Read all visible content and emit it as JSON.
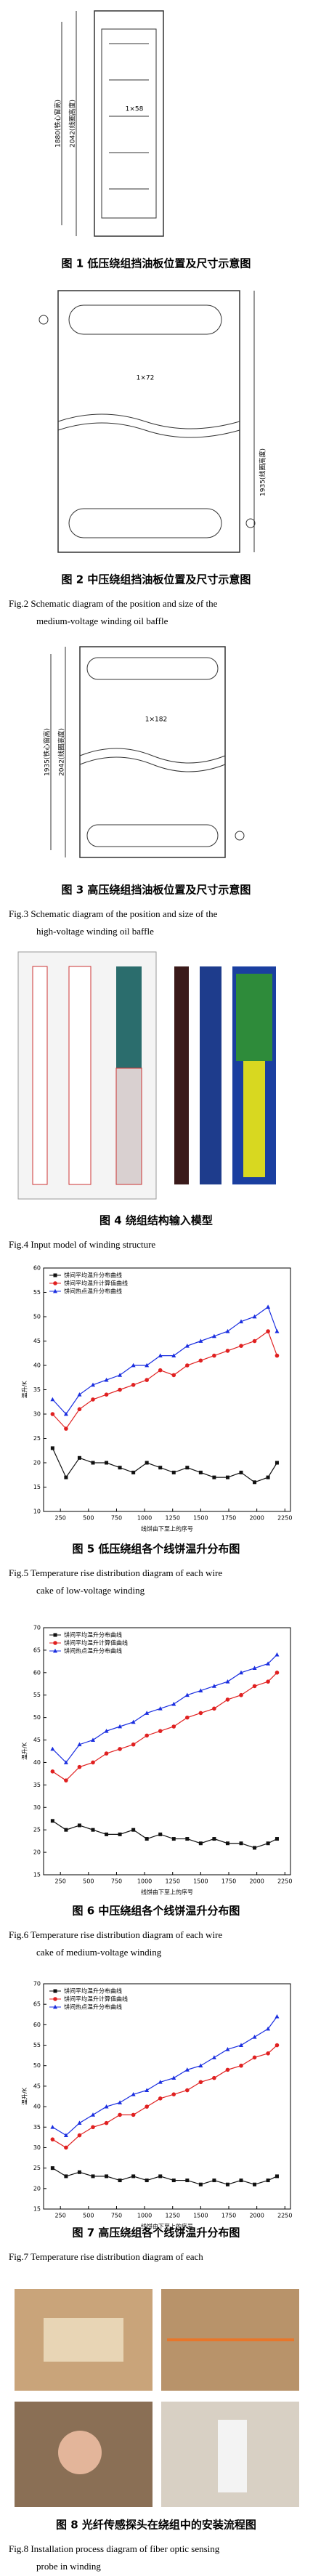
{
  "figures": [
    {
      "caption_cn": "图 1  低压绕组挡油板位置及尺寸示意图",
      "labels": [
        "1×58",
        "2042(线圈高度)",
        "1880(铁心窗高)"
      ]
    },
    {
      "caption_cn": "图 2  中压绕组挡油板位置及尺寸示意图",
      "caption_en": [
        "Fig.2  Schematic diagram of the position and size of the",
        "medium-voltage winding oil baffle"
      ],
      "labels": [
        "1×72",
        "1935(线圈高度)"
      ]
    },
    {
      "caption_cn": "图 3  高压绕组挡油板位置及尺寸示意图",
      "caption_en": [
        "Fig.3  Schematic diagram of the position and size of the",
        "high-voltage winding oil baffle"
      ],
      "labels": [
        "1×182",
        "2042(线圈高度)",
        "1935(铁心窗高)"
      ]
    },
    {
      "caption_cn": "图 4  绕组结构输入模型",
      "caption_en": [
        "Fig.4  Input model of winding structure"
      ]
    },
    {
      "caption_cn": "图 5  低压绕组各个线饼温升分布图",
      "caption_en": [
        "Fig.5  Temperature rise distribution diagram of each wire",
        "cake of low-voltage winding"
      ],
      "chart": {
        "type": "line",
        "x_label": "线饼由下至上的序号",
        "y_label": "温升/K",
        "legend": "upper left",
        "x": [
          180,
          300,
          420,
          540,
          660,
          780,
          900,
          1020,
          1140,
          1260,
          1380,
          1500,
          1620,
          1740,
          1860,
          1980,
          2100,
          2180
        ],
        "xlim": [
          100,
          2300
        ],
        "xticks": [
          250,
          500,
          750,
          1000,
          1250,
          1500,
          1750,
          2000,
          2250
        ],
        "ylim": [
          10,
          60
        ],
        "yticks": [
          10,
          15,
          20,
          25,
          30,
          35,
          40,
          45,
          50,
          55,
          60
        ],
        "series": [
          {
            "name": "饼间平均温升分布曲线",
            "color": "#111111",
            "marker": "square",
            "values": [
              23,
              17,
              21,
              20,
              20,
              19,
              18,
              20,
              19,
              18,
              19,
              18,
              17,
              17,
              18,
              16,
              17,
              20
            ]
          },
          {
            "name": "饼间平均温升计算值曲线",
            "color": "#e02020",
            "marker": "circle",
            "values": [
              30,
              27,
              31,
              33,
              34,
              35,
              36,
              37,
              39,
              38,
              40,
              41,
              42,
              43,
              44,
              45,
              47,
              42
            ]
          },
          {
            "name": "饼间热点温升分布曲线",
            "color": "#1a2ee0",
            "marker": "triangle",
            "values": [
              33,
              30,
              34,
              36,
              37,
              38,
              40,
              40,
              42,
              42,
              44,
              45,
              46,
              47,
              49,
              50,
              52,
              47
            ]
          }
        ]
      }
    },
    {
      "caption_cn": "图 6  中压绕组各个线饼温升分布图",
      "caption_en": [
        "Fig.6  Temperature rise distribution diagram of each wire",
        "cake of medium-voltage winding"
      ],
      "chart": {
        "type": "line",
        "x_label": "线饼由下至上的序号",
        "y_label": "温升/K",
        "legend": "upper left",
        "x": [
          180,
          300,
          420,
          540,
          660,
          780,
          900,
          1020,
          1140,
          1260,
          1380,
          1500,
          1620,
          1740,
          1860,
          1980,
          2100,
          2180
        ],
        "xlim": [
          100,
          2300
        ],
        "xticks": [
          250,
          500,
          750,
          1000,
          1250,
          1500,
          1750,
          2000,
          2250
        ],
        "ylim": [
          15,
          70
        ],
        "yticks": [
          15,
          20,
          25,
          30,
          35,
          40,
          45,
          50,
          55,
          60,
          65,
          70
        ],
        "series": [
          {
            "name": "饼间平均温升分布曲线",
            "color": "#111111",
            "marker": "square",
            "values": [
              27,
              25,
              26,
              25,
              24,
              24,
              25,
              23,
              24,
              23,
              23,
              22,
              23,
              22,
              22,
              21,
              22,
              23
            ]
          },
          {
            "name": "饼间平均温升计算值曲线",
            "color": "#e02020",
            "marker": "circle",
            "values": [
              38,
              36,
              39,
              40,
              42,
              43,
              44,
              46,
              47,
              48,
              50,
              51,
              52,
              54,
              55,
              57,
              58,
              60
            ]
          },
          {
            "name": "饼间热点温升分布曲线",
            "color": "#1a2ee0",
            "marker": "triangle",
            "values": [
              43,
              40,
              44,
              45,
              47,
              48,
              49,
              51,
              52,
              53,
              55,
              56,
              57,
              58,
              60,
              61,
              62,
              64
            ]
          }
        ]
      }
    },
    {
      "caption_cn": "图 7  高压绕组各个线饼温升分布图",
      "caption_en": [
        "Fig.7  Temperature rise distribution diagram of each"
      ],
      "chart": {
        "type": "line",
        "x_label": "线饼由下至上的序号",
        "y_label": "温升/K",
        "legend": "upper left",
        "x": [
          180,
          300,
          420,
          540,
          660,
          780,
          900,
          1020,
          1140,
          1260,
          1380,
          1500,
          1620,
          1740,
          1860,
          1980,
          2100,
          2180
        ],
        "xlim": [
          100,
          2300
        ],
        "xticks": [
          250,
          500,
          750,
          1000,
          1250,
          1500,
          1750,
          2000,
          2250
        ],
        "ylim": [
          15,
          70
        ],
        "yticks": [
          15,
          20,
          25,
          30,
          35,
          40,
          45,
          50,
          55,
          60,
          65,
          70
        ],
        "series": [
          {
            "name": "饼间平均温升分布曲线",
            "color": "#111111",
            "marker": "square",
            "values": [
              25,
              23,
              24,
              23,
              23,
              22,
              23,
              22,
              23,
              22,
              22,
              21,
              22,
              21,
              22,
              21,
              22,
              23
            ]
          },
          {
            "name": "饼间平均温升计算值曲线",
            "color": "#e02020",
            "marker": "circle",
            "values": [
              32,
              30,
              33,
              35,
              36,
              38,
              38,
              40,
              42,
              43,
              44,
              46,
              47,
              49,
              50,
              52,
              53,
              55
            ]
          },
          {
            "name": "饼间热点温升分布曲线",
            "color": "#1a2ee0",
            "marker": "triangle",
            "values": [
              35,
              33,
              36,
              38,
              40,
              41,
              43,
              44,
              46,
              47,
              49,
              50,
              52,
              54,
              55,
              57,
              59,
              62
            ]
          }
        ]
      }
    },
    {
      "caption_cn": "图 8  光纤传感探头在绕组中的安装流程图",
      "caption_en": [
        "Fig.8  Installation process diagram of fiber optic sensing",
        "probe in winding"
      ]
    }
  ]
}
